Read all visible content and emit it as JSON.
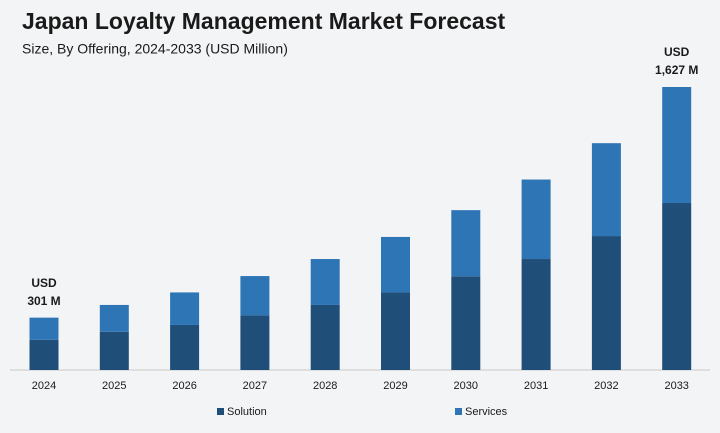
{
  "chart_data": {
    "type": "bar",
    "stacked": true,
    "title": "Japan Loyalty Management Market Forecast",
    "subtitle": "Size, By Offering, 2024-2033 (USD Million)",
    "categories": [
      "2024",
      "2025",
      "2026",
      "2027",
      "2028",
      "2029",
      "2030",
      "2031",
      "2032",
      "2033"
    ],
    "series": [
      {
        "name": "Solution",
        "color": "#1f4e79",
        "values": [
          174,
          220,
          259,
          314,
          374,
          446,
          539,
          638,
          770,
          960
        ]
      },
      {
        "name": "Services",
        "color": "#2e75b6",
        "values": [
          127,
          154,
          187,
          226,
          264,
          319,
          380,
          457,
          534,
          667
        ]
      }
    ],
    "annotations": [
      {
        "category": "2024",
        "lines": [
          "USD",
          "301 M"
        ]
      },
      {
        "category": "2033",
        "lines": [
          "USD",
          "1,627 M"
        ]
      }
    ],
    "grid": false
  }
}
